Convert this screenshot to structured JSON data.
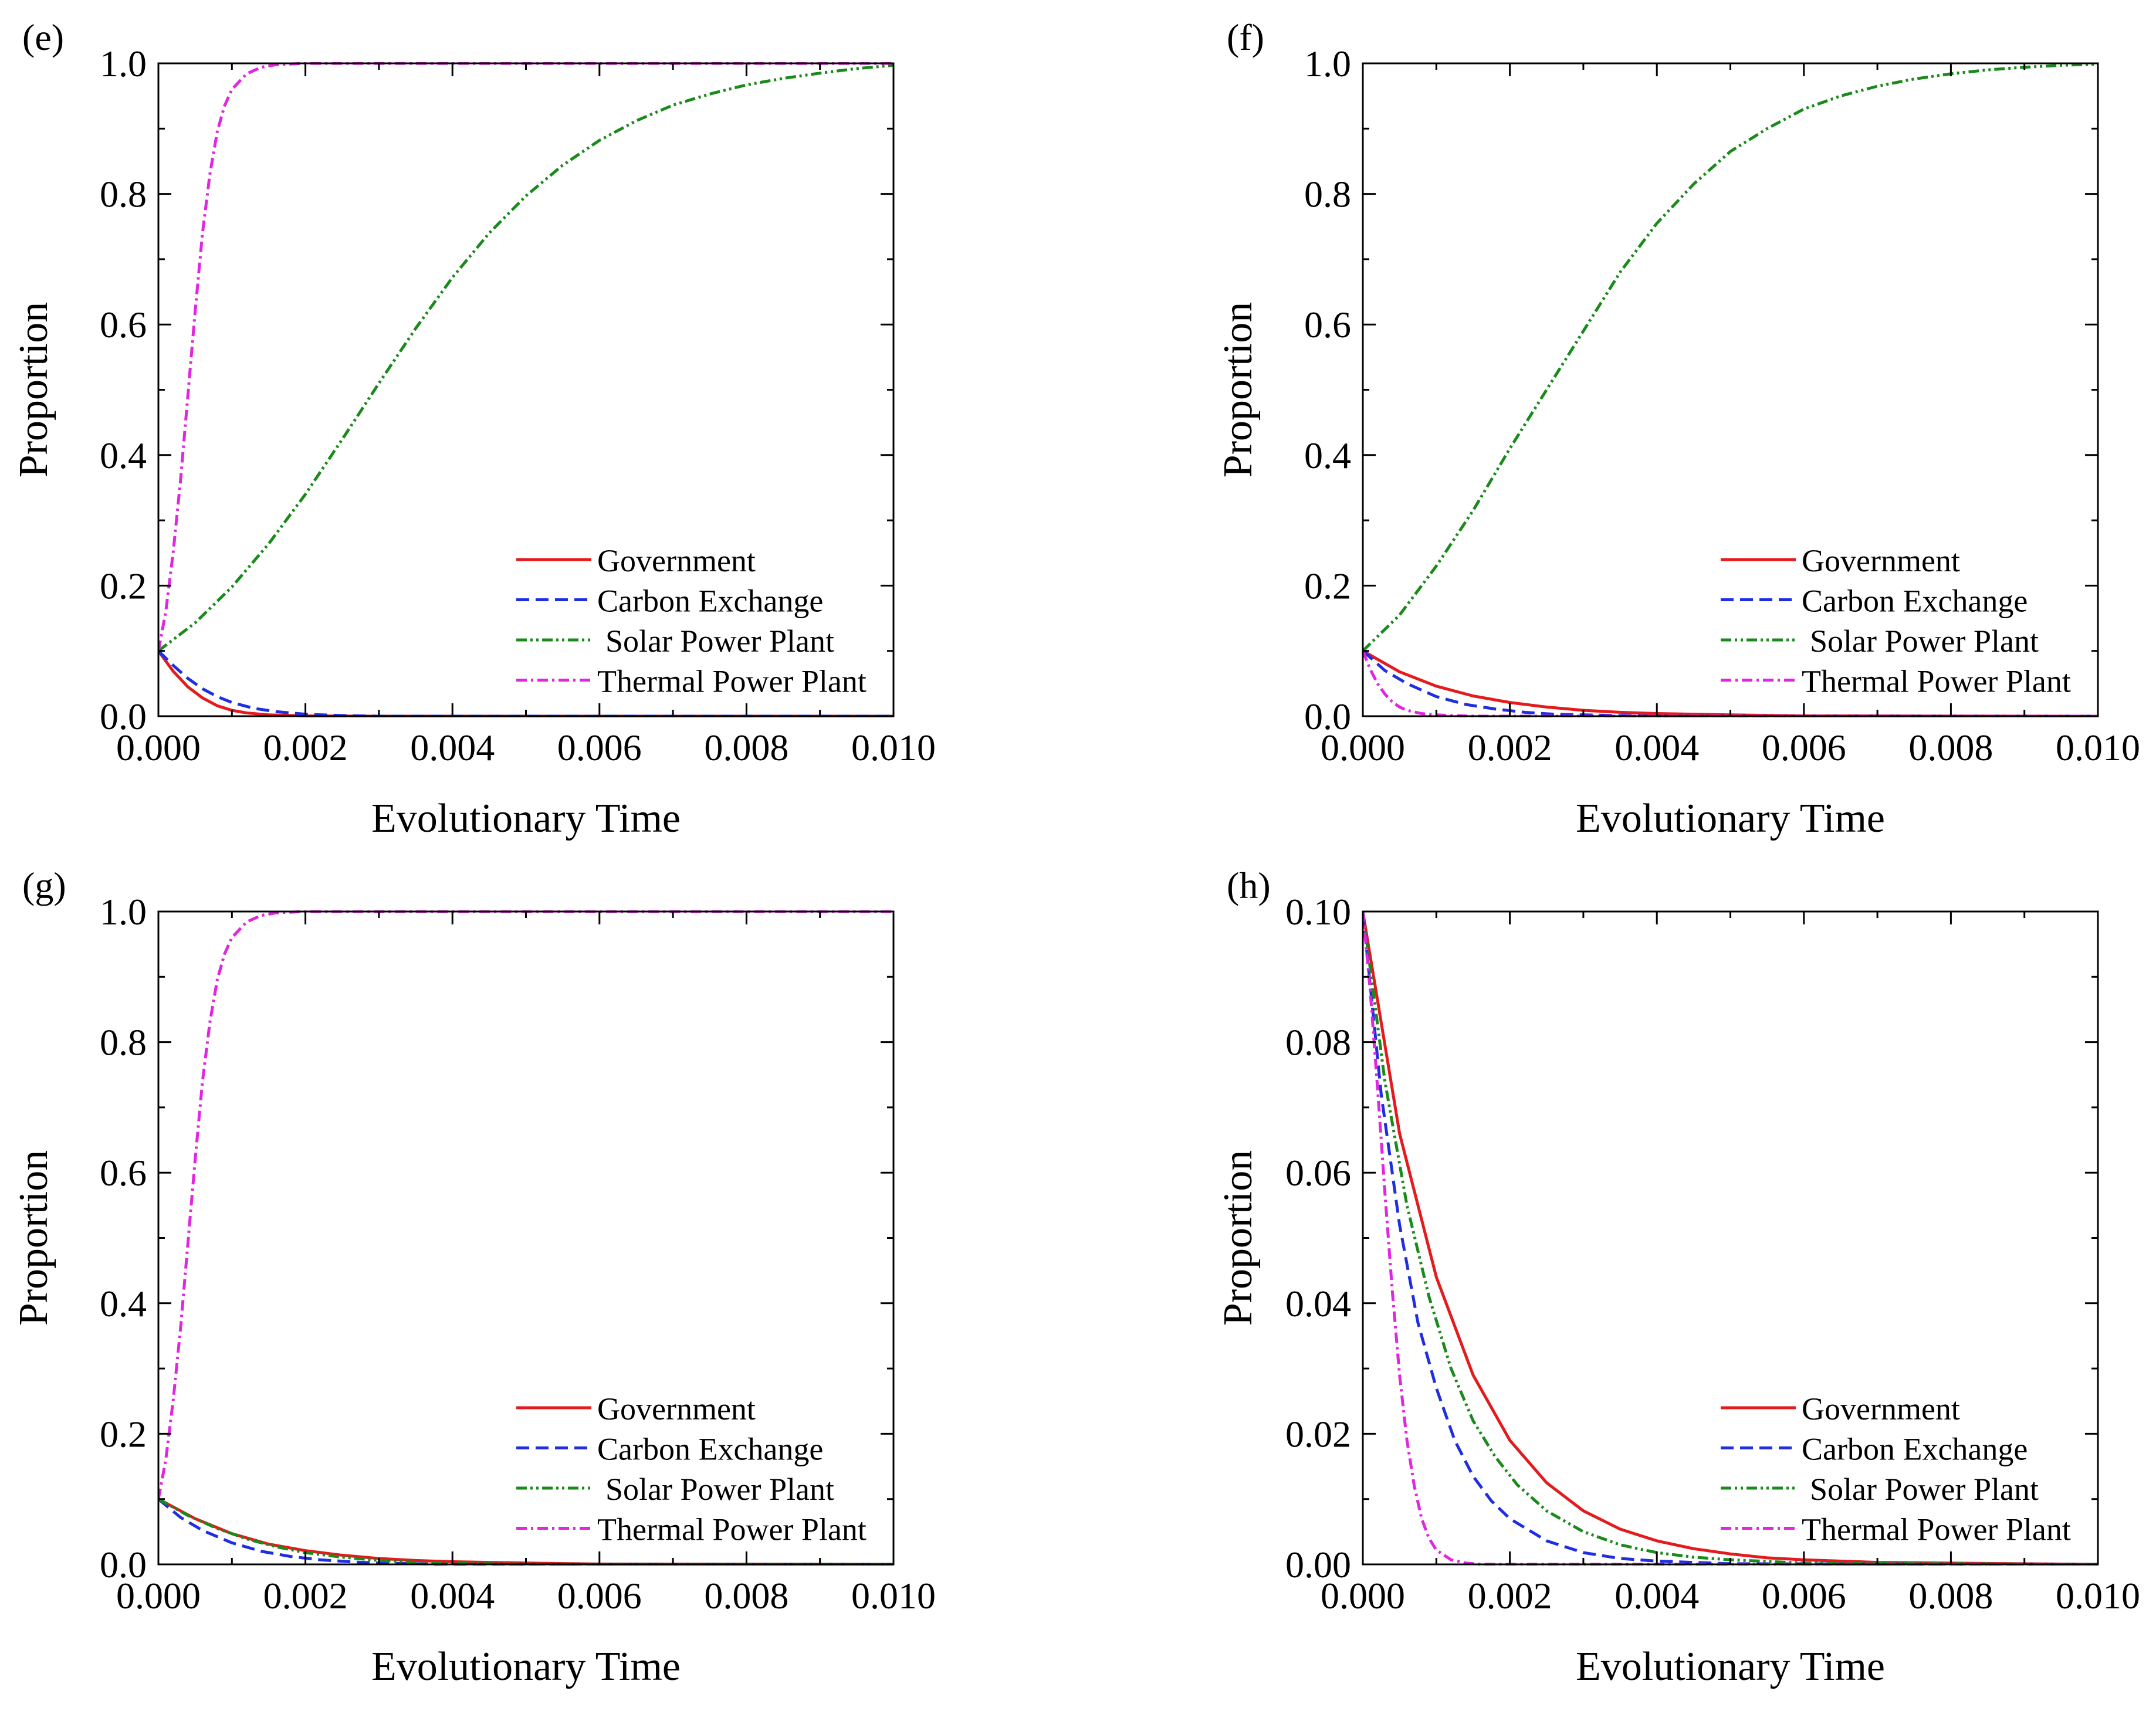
{
  "chart_data": [
    {
      "panel": "(e)",
      "type": "line",
      "xlabel": "Evolutionary Time",
      "ylabel": "Proportion",
      "xlim": [
        0,
        0.01
      ],
      "ylim": [
        0,
        1.0
      ],
      "xticks": [
        "0.000",
        "0.002",
        "0.004",
        "0.006",
        "0.008",
        "0.010"
      ],
      "yticks": [
        "0.0",
        "0.2",
        "0.4",
        "0.6",
        "0.8",
        "1.0"
      ],
      "legend_position": "bottom-right",
      "series": [
        {
          "name": "Government",
          "color": "#e41a1c",
          "dash": "solid",
          "x": [
            0,
            0.0002,
            0.0004,
            0.0006,
            0.0008,
            0.001,
            0.0012,
            0.0015,
            0.002,
            0.003,
            0.01
          ],
          "y": [
            0.1,
            0.069,
            0.045,
            0.028,
            0.016,
            0.009,
            0.005,
            0.002,
            0.0005,
            0.0,
            0.0
          ]
        },
        {
          "name": "Carbon Exchange",
          "color": "#1f2ee0",
          "dash": "dashed",
          "x": [
            0,
            0.0002,
            0.0004,
            0.0006,
            0.0008,
            0.001,
            0.0013,
            0.0016,
            0.002,
            0.0025,
            0.003,
            0.01
          ],
          "y": [
            0.1,
            0.078,
            0.058,
            0.042,
            0.03,
            0.021,
            0.012,
            0.007,
            0.003,
            0.001,
            0.0,
            0.0
          ]
        },
        {
          "name": "Solar Power Plant",
          "color": "#1a8a1a",
          "dash": "dashdotdot",
          "x": [
            0,
            0.0005,
            0.001,
            0.0015,
            0.002,
            0.0025,
            0.003,
            0.0035,
            0.004,
            0.0045,
            0.005,
            0.0055,
            0.006,
            0.0065,
            0.007,
            0.0075,
            0.008,
            0.0085,
            0.009,
            0.0095,
            0.01
          ],
          "y": [
            0.1,
            0.143,
            0.198,
            0.264,
            0.34,
            0.424,
            0.51,
            0.594,
            0.672,
            0.74,
            0.797,
            0.844,
            0.882,
            0.912,
            0.936,
            0.953,
            0.967,
            0.977,
            0.985,
            0.992,
            0.997
          ]
        },
        {
          "name": "Thermal Power Plant",
          "color": "#e026e0",
          "dash": "dashdot",
          "x": [
            0,
            0.0001,
            0.0002,
            0.0003,
            0.0004,
            0.0005,
            0.0006,
            0.0007,
            0.0008,
            0.0009,
            0.001,
            0.0012,
            0.0014,
            0.0016,
            0.0018,
            0.002,
            0.0025,
            0.003,
            0.01
          ],
          "y": [
            0.1,
            0.16,
            0.25,
            0.36,
            0.49,
            0.62,
            0.74,
            0.83,
            0.895,
            0.935,
            0.96,
            0.984,
            0.994,
            0.998,
            0.999,
            1.0,
            1.0,
            1.0,
            1.0
          ]
        }
      ]
    },
    {
      "panel": "(f)",
      "type": "line",
      "xlabel": "Evolutionary Time",
      "ylabel": "Proportion",
      "xlim": [
        0,
        0.01
      ],
      "ylim": [
        0,
        1.0
      ],
      "xticks": [
        "0.000",
        "0.002",
        "0.004",
        "0.006",
        "0.008",
        "0.010"
      ],
      "yticks": [
        "0.0",
        "0.2",
        "0.4",
        "0.6",
        "0.8",
        "1.0"
      ],
      "legend_position": "bottom-right",
      "series": [
        {
          "name": "Government",
          "color": "#e41a1c",
          "dash": "solid",
          "x": [
            0,
            0.0005,
            0.001,
            0.0015,
            0.002,
            0.0025,
            0.003,
            0.0035,
            0.004,
            0.005,
            0.006,
            0.01
          ],
          "y": [
            0.1,
            0.068,
            0.046,
            0.031,
            0.021,
            0.014,
            0.009,
            0.006,
            0.004,
            0.002,
            0.0005,
            0.0
          ]
        },
        {
          "name": "Carbon Exchange",
          "color": "#1f2ee0",
          "dash": "dashed",
          "x": [
            0,
            0.0003,
            0.0006,
            0.001,
            0.0014,
            0.0018,
            0.0022,
            0.0026,
            0.003,
            0.004,
            0.01
          ],
          "y": [
            0.1,
            0.07,
            0.05,
            0.03,
            0.018,
            0.011,
            0.006,
            0.003,
            0.002,
            0.0,
            0.0
          ]
        },
        {
          "name": "Solar Power Plant",
          "color": "#1a8a1a",
          "dash": "dashdotdot",
          "x": [
            0,
            0.0005,
            0.001,
            0.0015,
            0.002,
            0.0025,
            0.003,
            0.0035,
            0.004,
            0.0045,
            0.005,
            0.0055,
            0.006,
            0.0065,
            0.007,
            0.0075,
            0.008,
            0.0085,
            0.009,
            0.0095,
            0.01
          ],
          "y": [
            0.1,
            0.155,
            0.23,
            0.315,
            0.41,
            0.5,
            0.59,
            0.68,
            0.755,
            0.815,
            0.865,
            0.9,
            0.93,
            0.95,
            0.965,
            0.976,
            0.984,
            0.99,
            0.994,
            0.997,
            0.999
          ]
        },
        {
          "name": "Thermal Power Plant",
          "color": "#e026e0",
          "dash": "dashdot",
          "x": [
            0,
            0.0001,
            0.0002,
            0.0003,
            0.0004,
            0.0005,
            0.0006,
            0.0008,
            0.001,
            0.0012,
            0.0015,
            0.002,
            0.01
          ],
          "y": [
            0.1,
            0.072,
            0.05,
            0.034,
            0.022,
            0.014,
            0.009,
            0.004,
            0.002,
            0.001,
            0.0,
            0.0,
            0.0
          ]
        }
      ]
    },
    {
      "panel": "(g)",
      "type": "line",
      "xlabel": "Evolutionary Time",
      "ylabel": "Proportion",
      "xlim": [
        0,
        0.01
      ],
      "ylim": [
        0,
        1.0
      ],
      "xticks": [
        "0.000",
        "0.002",
        "0.004",
        "0.006",
        "0.008",
        "0.010"
      ],
      "yticks": [
        "0.0",
        "0.2",
        "0.4",
        "0.6",
        "0.8",
        "1.0"
      ],
      "legend_position": "bottom-right",
      "series": [
        {
          "name": "Government",
          "color": "#e41a1c",
          "dash": "solid",
          "x": [
            0,
            0.0005,
            0.001,
            0.0015,
            0.002,
            0.0025,
            0.003,
            0.0035,
            0.004,
            0.005,
            0.006,
            0.01
          ],
          "y": [
            0.1,
            0.07,
            0.047,
            0.031,
            0.021,
            0.014,
            0.009,
            0.006,
            0.004,
            0.002,
            0.0005,
            0.0
          ]
        },
        {
          "name": "Carbon Exchange",
          "color": "#1f2ee0",
          "dash": "dashed",
          "x": [
            0,
            0.0003,
            0.0006,
            0.001,
            0.0014,
            0.0018,
            0.0022,
            0.0026,
            0.003,
            0.004,
            0.01
          ],
          "y": [
            0.1,
            0.072,
            0.052,
            0.033,
            0.02,
            0.012,
            0.007,
            0.004,
            0.002,
            0.0,
            0.0
          ]
        },
        {
          "name": "Solar Power Plant",
          "color": "#1a8a1a",
          "dash": "dashdotdot",
          "x": [
            0,
            0.0004,
            0.0008,
            0.0012,
            0.0016,
            0.002,
            0.0025,
            0.003,
            0.0035,
            0.004,
            0.005,
            0.01
          ],
          "y": [
            0.1,
            0.075,
            0.055,
            0.039,
            0.027,
            0.018,
            0.011,
            0.006,
            0.003,
            0.002,
            0.0,
            0.0
          ]
        },
        {
          "name": "Thermal Power Plant",
          "color": "#e026e0",
          "dash": "dashdot",
          "x": [
            0,
            0.0001,
            0.0002,
            0.0003,
            0.0004,
            0.0005,
            0.0006,
            0.0007,
            0.0008,
            0.0009,
            0.001,
            0.0012,
            0.0014,
            0.0016,
            0.0018,
            0.002,
            0.0025,
            0.003,
            0.01
          ],
          "y": [
            0.1,
            0.16,
            0.25,
            0.36,
            0.49,
            0.62,
            0.74,
            0.83,
            0.895,
            0.935,
            0.96,
            0.984,
            0.994,
            0.998,
            0.999,
            1.0,
            1.0,
            1.0,
            1.0
          ]
        }
      ]
    },
    {
      "panel": "(h)",
      "type": "line",
      "xlabel": "Evolutionary Time",
      "ylabel": "Proportion",
      "xlim": [
        0,
        0.01
      ],
      "ylim": [
        0,
        0.1
      ],
      "xticks": [
        "0.000",
        "0.002",
        "0.004",
        "0.006",
        "0.008",
        "0.010"
      ],
      "yticks": [
        "0.00",
        "0.02",
        "0.04",
        "0.06",
        "0.08",
        "0.10"
      ],
      "legend_position": "bottom-right",
      "series": [
        {
          "name": "Government",
          "color": "#e41a1c",
          "dash": "solid",
          "x": [
            0,
            0.0005,
            0.001,
            0.0015,
            0.002,
            0.0025,
            0.003,
            0.0035,
            0.004,
            0.0045,
            0.005,
            0.0055,
            0.006,
            0.007,
            0.01
          ],
          "y": [
            0.1,
            0.066,
            0.044,
            0.029,
            0.019,
            0.0125,
            0.0082,
            0.0054,
            0.0036,
            0.0024,
            0.0016,
            0.001,
            0.0007,
            0.0003,
            0.0
          ]
        },
        {
          "name": "Carbon Exchange",
          "color": "#1f2ee0",
          "dash": "dashed",
          "x": [
            0,
            0.00025,
            0.0005,
            0.00075,
            0.001,
            0.00125,
            0.0015,
            0.00175,
            0.002,
            0.0025,
            0.003,
            0.0035,
            0.004,
            0.005,
            0.01
          ],
          "y": [
            0.1,
            0.072,
            0.052,
            0.037,
            0.027,
            0.019,
            0.0135,
            0.0097,
            0.007,
            0.0036,
            0.0018,
            0.0009,
            0.0005,
            0.0001,
            0.0
          ]
        },
        {
          "name": "Solar Power Plant",
          "color": "#1a8a1a",
          "dash": "dashdotdot",
          "x": [
            0,
            0.0003,
            0.0006,
            0.0009,
            0.0012,
            0.0015,
            0.0018,
            0.0021,
            0.0025,
            0.003,
            0.0035,
            0.004,
            0.0045,
            0.005,
            0.006,
            0.01
          ],
          "y": [
            0.1,
            0.074,
            0.055,
            0.041,
            0.03,
            0.022,
            0.0165,
            0.0122,
            0.0082,
            0.005,
            0.003,
            0.0018,
            0.0011,
            0.0007,
            0.0002,
            0.0
          ]
        },
        {
          "name": "Thermal Power Plant",
          "color": "#e026e0",
          "dash": "dashdot",
          "x": [
            0,
            0.0001,
            0.0002,
            0.0003,
            0.0004,
            0.0005,
            0.0006,
            0.0007,
            0.0008,
            0.0009,
            0.001,
            0.0012,
            0.0014,
            0.0016,
            0.002,
            0.01
          ],
          "y": [
            0.1,
            0.088,
            0.073,
            0.057,
            0.042,
            0.029,
            0.019,
            0.012,
            0.007,
            0.004,
            0.0022,
            0.0007,
            0.0002,
            0.0,
            0.0,
            0.0
          ]
        }
      ]
    }
  ]
}
